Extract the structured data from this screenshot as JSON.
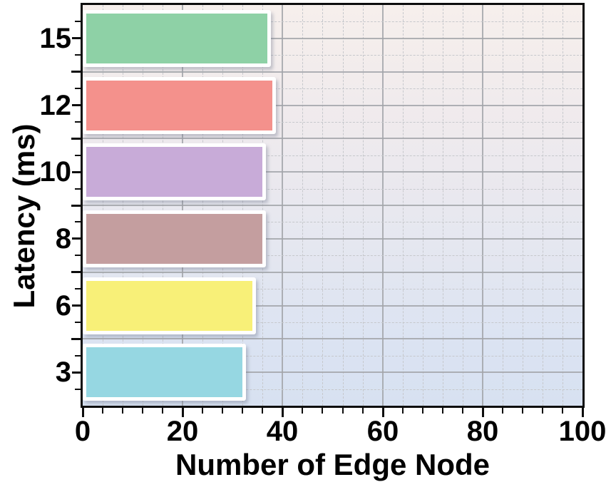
{
  "chart_data": {
    "type": "bar",
    "orientation": "horizontal",
    "title": "",
    "xlabel": "Number of Edge Node",
    "ylabel": "Latency (ms)",
    "xlim": [
      0,
      100
    ],
    "x_major_ticks": [
      0,
      20,
      40,
      60,
      80,
      100
    ],
    "x_minor_tick_step": 4,
    "grid": {
      "vertical_solid_at": [
        20,
        40,
        60,
        80
      ],
      "vertical_dashed_every": 4,
      "horizontal": "solid lines at each half-category, dashed at quarter-category",
      "solid_color": "#a2a4a9",
      "dashed_color": "#c6c8cc"
    },
    "legend": "none",
    "background_gradient": [
      "#f6efec",
      "#d7e1f1"
    ],
    "categories_bottom_to_top": [
      "3",
      "6",
      "8",
      "10",
      "12",
      "15"
    ],
    "bars_top_to_bottom": [
      {
        "label": "15",
        "value": 37,
        "color": "#8ed1a6"
      },
      {
        "label": "12",
        "value": 38,
        "color": "#f4918c"
      },
      {
        "label": "10",
        "value": 36,
        "color": "#c8abd8"
      },
      {
        "label": "8",
        "value": 36,
        "color": "#c49e9f"
      },
      {
        "label": "6",
        "value": 34,
        "color": "#f8f078"
      },
      {
        "label": "3",
        "value": 32,
        "color": "#96d7e2"
      }
    ]
  }
}
